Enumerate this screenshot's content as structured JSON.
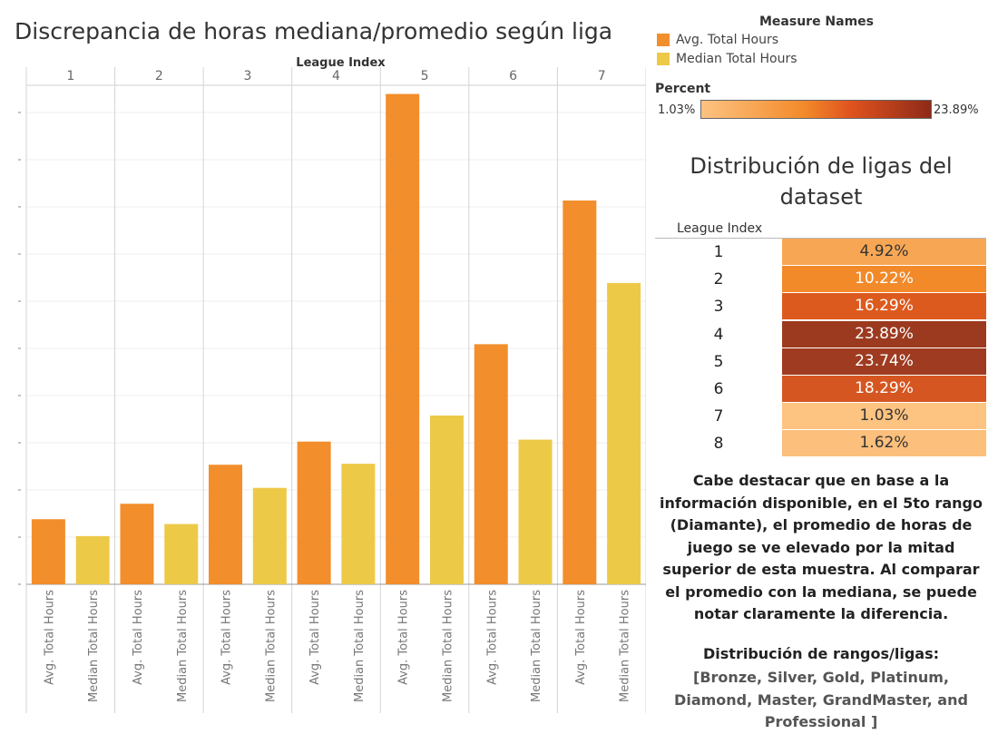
{
  "title": "Discrepancia de horas mediana/promedio según liga",
  "legend": {
    "title": "Measure Names",
    "items": [
      {
        "label": "Avg. Total Hours",
        "color": "#f28e2b"
      },
      {
        "label": "Median Total Hours",
        "color": "#edc948"
      }
    ]
  },
  "percent_legend": {
    "title": "Percent",
    "min_label": "1.03%",
    "max_label": "23.89%"
  },
  "chart_data": {
    "type": "bar",
    "title": "Discrepancia de horas mediana/promedio según liga",
    "facet_label": "League Index",
    "facets": [
      "1",
      "2",
      "3",
      "4",
      "5",
      "6",
      "7"
    ],
    "measures": [
      "Avg. Total Hours",
      "Median Total Hours"
    ],
    "series": [
      {
        "name": "Avg. Total Hours",
        "color": "#f28e2b",
        "values": [
          13.5,
          16.7,
          24.8,
          29.6,
          101.7,
          49.8,
          79.6
        ]
      },
      {
        "name": "Median Total Hours",
        "color": "#edc948",
        "values": [
          10.0,
          12.5,
          20.0,
          25.0,
          35.0,
          30.0,
          62.5
        ]
      }
    ],
    "ylim": [
      0,
      103.5
    ],
    "grid": true
  },
  "table": {
    "title": "Distribución de ligas del dataset",
    "header": "League Index",
    "rows": [
      {
        "index": "1",
        "value": "4.92%",
        "color": "#f7a754",
        "text_color": "#333333"
      },
      {
        "index": "2",
        "value": "10.22%",
        "color": "#f28a2a",
        "text_color": "#ffffff"
      },
      {
        "index": "3",
        "value": "16.29%",
        "color": "#dd5a1e",
        "text_color": "#ffffff"
      },
      {
        "index": "4",
        "value": "23.89%",
        "color": "#9c3a20",
        "text_color": "#ffffff"
      },
      {
        "index": "5",
        "value": "23.74%",
        "color": "#9e3b20",
        "text_color": "#ffffff"
      },
      {
        "index": "6",
        "value": "18.29%",
        "color": "#d65621",
        "text_color": "#ffffff"
      },
      {
        "index": "7",
        "value": "1.03%",
        "color": "#fdc381",
        "text_color": "#333333"
      },
      {
        "index": "8",
        "value": "1.62%",
        "color": "#fcbf7c",
        "text_color": "#333333"
      }
    ]
  },
  "note": {
    "text": "Cabe destacar que en base a la información disponible, en el 5to rango (Diamante), el promedio de horas de juego se ve elevado por la mitad superior de esta muestra. Al comparar el promedio con la mediana, se puede notar claramente la diferencia.",
    "sub_title": "Distribución de rangos/ligas:",
    "sub_text": "[Bronze, Silver, Gold, Platinum, Diamond, Master, GrandMaster, and Professional ]"
  }
}
